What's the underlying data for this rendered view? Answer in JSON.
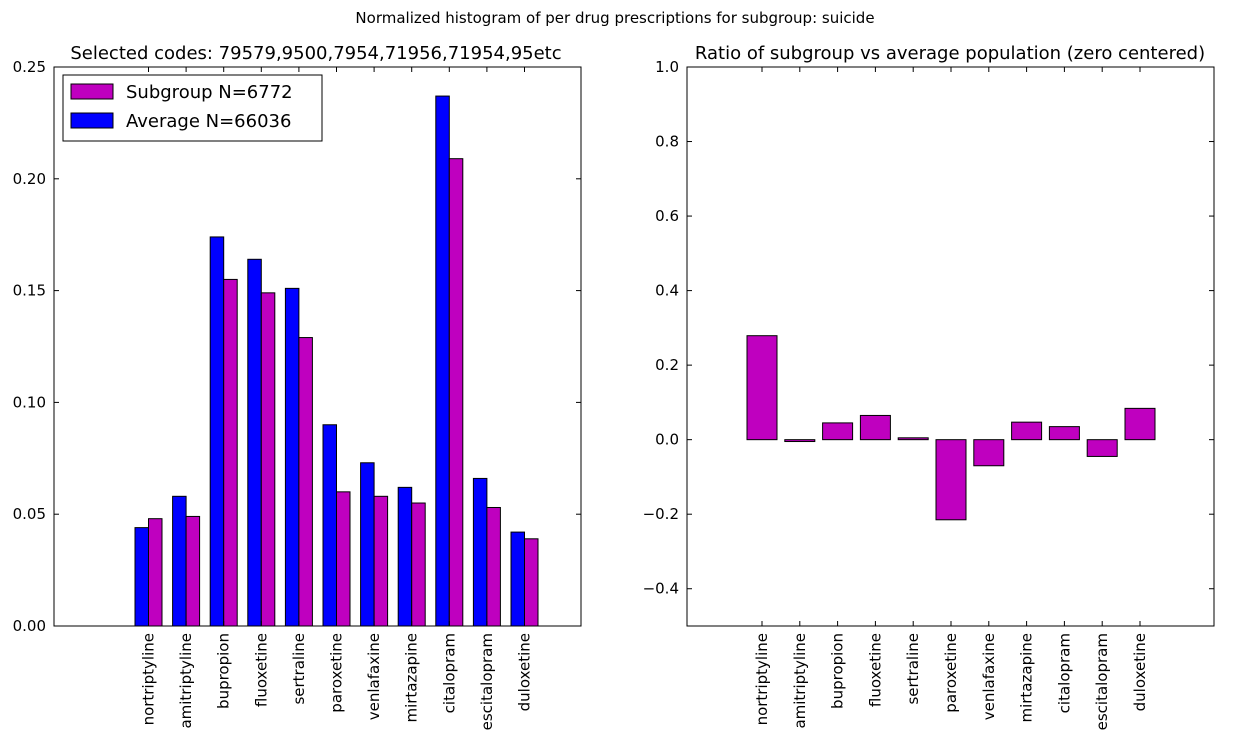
{
  "suptitle": "Normalized histogram of per drug prescriptions for subgroup: suicide",
  "chart_data": [
    {
      "type": "bar",
      "title": "Selected codes: 79579,9500,7954,71956,71954,95etc",
      "xlabel": "",
      "ylabel": "",
      "categories": [
        "nortriptyline",
        "amitriptyline",
        "bupropion",
        "fluoxetine",
        "sertraline",
        "paroxetine",
        "venlafaxine",
        "mirtazapine",
        "citalopram",
        "escitalopram",
        "duloxetine"
      ],
      "series": [
        {
          "name": "Subgroup N=6772",
          "color": "#bf00bf",
          "values": [
            0.048,
            0.049,
            0.155,
            0.149,
            0.129,
            0.06,
            0.058,
            0.055,
            0.209,
            0.053,
            0.039
          ]
        },
        {
          "name": "Average N=66036",
          "color": "#0000ff",
          "values": [
            0.044,
            0.058,
            0.174,
            0.164,
            0.151,
            0.09,
            0.073,
            0.062,
            0.237,
            0.066,
            0.042
          ]
        }
      ],
      "ylim": [
        0,
        0.25
      ],
      "yticks": [
        "0.00",
        "0.05",
        "0.10",
        "0.15",
        "0.20",
        "0.25"
      ],
      "legend": "top-left",
      "grid": false
    },
    {
      "type": "bar",
      "title": "Ratio of subgroup vs average population (zero centered)",
      "xlabel": "",
      "ylabel": "",
      "categories": [
        "nortriptyline",
        "amitriptyline",
        "bupropion",
        "fluoxetine",
        "sertraline",
        "paroxetine",
        "venlafaxine",
        "mirtazapine",
        "citalopram",
        "escitalopram",
        "duloxetine"
      ],
      "series": [
        {
          "color": "#bf00bf",
          "values": [
            0.279,
            -0.005,
            0.045,
            0.065,
            0.005,
            -0.215,
            -0.07,
            0.047,
            0.035,
            -0.045,
            0.084
          ]
        }
      ],
      "ylim": [
        -0.5,
        1.0
      ],
      "yticks": [
        "−0.4",
        "−0.2",
        "0.0",
        "0.2",
        "0.4",
        "0.6",
        "0.8",
        "1.0"
      ],
      "grid": false
    }
  ]
}
